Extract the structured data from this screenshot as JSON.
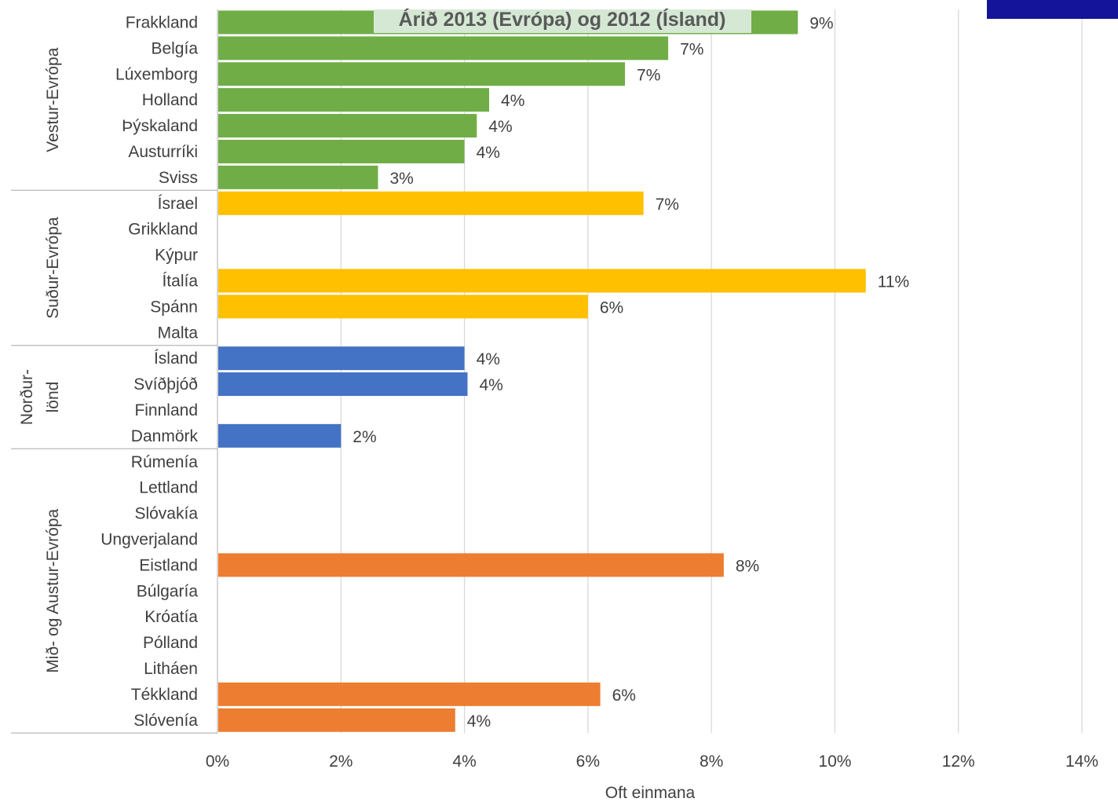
{
  "chart_data": {
    "type": "bar",
    "orientation": "horizontal",
    "title": "Árið 2013 (Evrópa) og 2012 (Ísland)",
    "xlabel": "Oft einmana",
    "ylabel": "",
    "xlim": [
      0,
      14
    ],
    "x_ticks": [
      "0%",
      "2%",
      "4%",
      "6%",
      "8%",
      "10%",
      "12%",
      "14%"
    ],
    "grid": "vertical",
    "legend": "none",
    "groups": [
      {
        "name": "Vestur-Evrópa",
        "name_lines": [
          "Vestur-Evrópa"
        ],
        "color": "#70AD47",
        "categories": [
          "Frakkland",
          "Belgía",
          "Lúxemborg",
          "Holland",
          "Þýskaland",
          "Austurríki",
          "Sviss"
        ],
        "values": [
          9.4,
          7.3,
          6.6,
          4.4,
          4.2,
          4.0,
          2.6
        ],
        "labels": [
          "9%",
          "7%",
          "7%",
          "4%",
          "4%",
          "4%",
          "3%"
        ]
      },
      {
        "name": "Suður-Evrópa",
        "name_lines": [
          "Suður-Evrópa"
        ],
        "color": "#FFC000",
        "categories": [
          "Ísrael",
          "Grikkland",
          "Kýpur",
          "Ítalía",
          "Spánn",
          "Malta"
        ],
        "values": [
          6.9,
          null,
          null,
          10.5,
          6.0,
          null
        ],
        "labels": [
          "7%",
          "",
          "",
          "11%",
          "6%",
          ""
        ]
      },
      {
        "name": "Norður-lönd",
        "name_lines": [
          "Norður-",
          "lönd"
        ],
        "color": "#4472C4",
        "categories": [
          "Ísland",
          "Svíðþjóð",
          "Finnland",
          "Danmörk"
        ],
        "values": [
          4.0,
          4.05,
          null,
          2.0
        ],
        "labels": [
          "4%",
          "4%",
          "",
          "2%"
        ]
      },
      {
        "name": "Mið- og Austur-Evrópa",
        "name_lines": [
          "Mið- og Austur-Evrópa"
        ],
        "color": "#ED7D31",
        "categories": [
          "Rúmenía",
          "Lettland",
          "Slóvakía",
          "Ungverjaland",
          "Eistland",
          "Búlgaría",
          "Króatía",
          "Pólland",
          "Litháen",
          "Tékkland",
          "Slóvenía"
        ],
        "values": [
          null,
          null,
          null,
          null,
          8.2,
          null,
          null,
          null,
          null,
          6.2,
          3.85
        ],
        "labels": [
          "",
          "",
          "",
          "",
          "8%",
          "",
          "",
          "",
          "",
          "6%",
          "4%"
        ]
      }
    ],
    "colors": {
      "title_bg": "#D5E8D4",
      "corner_box": "#13149A",
      "grid": "#D9D9D9",
      "axis_line": "#BFBFBF"
    }
  }
}
